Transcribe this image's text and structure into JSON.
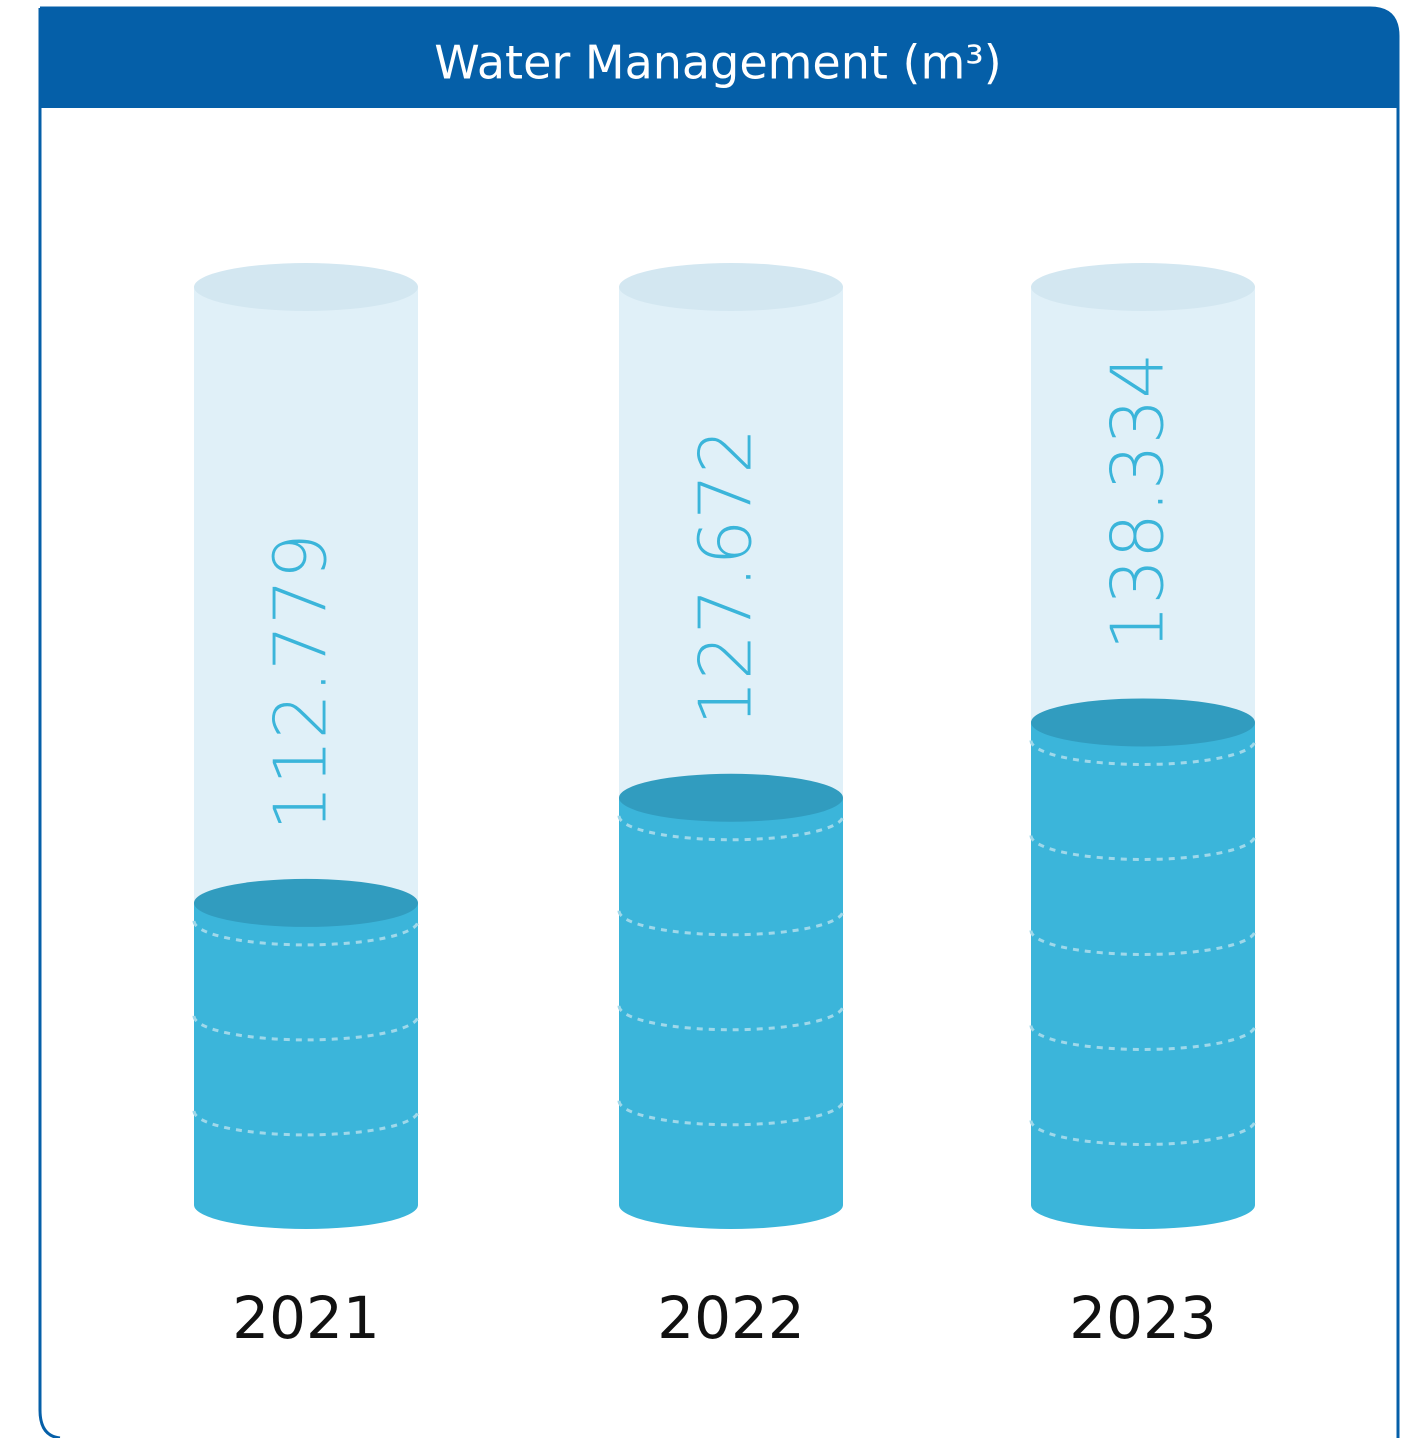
{
  "chart_data": {
    "type": "cylinder",
    "title": "Water Management  (m³)",
    "categories": [
      "2021",
      "2022",
      "2023"
    ],
    "values": [
      112779,
      127672,
      138334
    ],
    "value_labels": [
      "112.779",
      "127.672",
      "138.334"
    ],
    "color": "#3bb5da",
    "ylim": [
      70000,
      200000
    ]
  }
}
